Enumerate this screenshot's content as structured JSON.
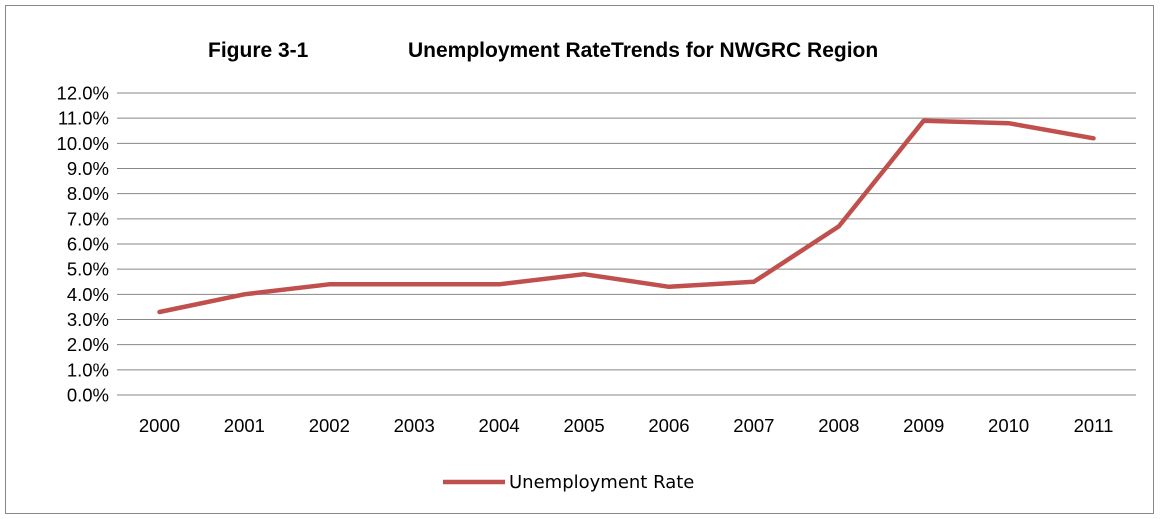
{
  "chart_data": {
    "type": "line",
    "title_figure": "Figure 3-1",
    "title": "Unemployment RateTrends for NWGRC Region",
    "xlabel": "",
    "ylabel": "",
    "categories": [
      "2000",
      "2001",
      "2002",
      "2003",
      "2004",
      "2005",
      "2006",
      "2007",
      "2008",
      "2009",
      "2010",
      "2011"
    ],
    "series": [
      {
        "name": "Unemployment Rate",
        "color": "#c0504d",
        "values": [
          3.3,
          4.0,
          4.4,
          4.4,
          4.4,
          4.8,
          4.3,
          4.5,
          6.7,
          10.9,
          10.8,
          10.2
        ]
      }
    ],
    "ylim": [
      0,
      12
    ],
    "y_ticks": [
      "0.0%",
      "1.0%",
      "2.0%",
      "3.0%",
      "4.0%",
      "5.0%",
      "6.0%",
      "7.0%",
      "8.0%",
      "9.0%",
      "10.0%",
      "11.0%",
      "12.0%"
    ],
    "grid": true,
    "legend": "bottom"
  }
}
